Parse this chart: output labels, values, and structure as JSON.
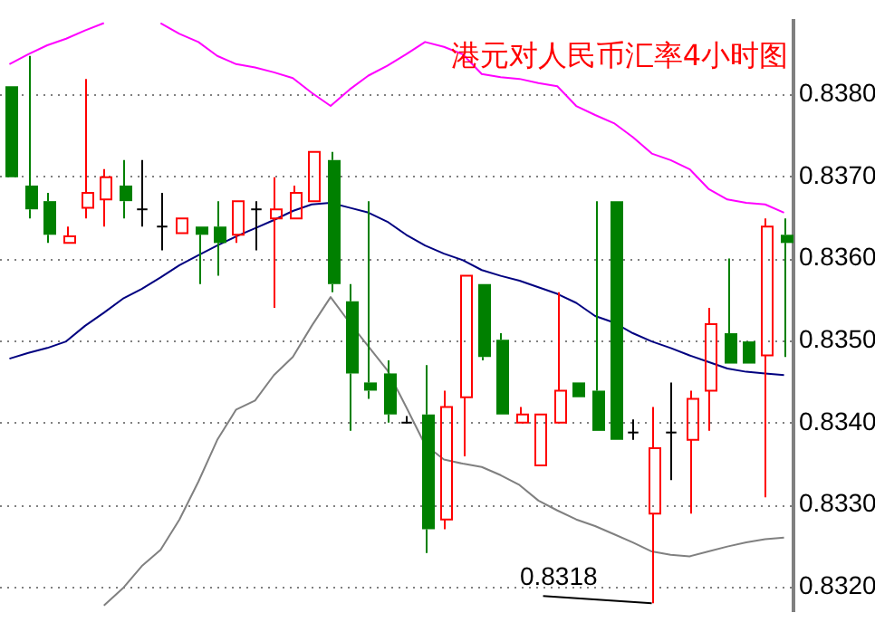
{
  "chart_data": {
    "type": "candlestick",
    "title": "港元对人民币汇率4小时图",
    "categories": [
      null,
      null,
      null,
      null,
      null,
      null,
      null,
      null,
      null,
      null,
      null,
      null,
      null,
      null,
      null,
      null,
      null,
      null,
      null,
      null,
      null,
      null,
      null,
      null,
      null,
      null,
      null,
      null,
      null,
      null,
      null,
      null,
      null,
      null,
      null,
      null,
      null,
      null,
      null,
      null,
      null,
      null
    ],
    "ohlc": [
      [
        0.8381,
        0.8381,
        0.83699,
        0.83699
      ],
      [
        0.83689,
        0.83847,
        0.83649,
        0.8366
      ],
      [
        0.8367,
        0.8368,
        0.83619,
        0.83629
      ],
      [
        0.83619,
        0.83639,
        0.83619,
        0.83627
      ],
      [
        0.83662,
        0.83819,
        0.83649,
        0.8368
      ],
      [
        0.83672,
        0.83709,
        0.83639,
        0.83699
      ],
      [
        0.83689,
        0.8372,
        0.83649,
        0.8367
      ],
      [
        0.8366,
        0.8372,
        0.83639,
        0.8366
      ],
      [
        0.83639,
        0.8368,
        0.8361,
        0.83639
      ],
      [
        0.83631,
        0.83649,
        0.83631,
        0.83649
      ],
      [
        0.83639,
        0.83639,
        0.83569,
        0.83629
      ],
      [
        0.83639,
        0.8367,
        0.83579,
        0.83619
      ],
      [
        0.83629,
        0.8367,
        0.83619,
        0.8367
      ],
      [
        0.8366,
        0.8367,
        0.8361,
        0.8366
      ],
      [
        0.83649,
        0.83699,
        0.8354,
        0.8366
      ],
      [
        0.83649,
        0.83689,
        0.83649,
        0.8368
      ],
      [
        0.8367,
        0.8373,
        0.8367,
        0.8373
      ],
      [
        0.8372,
        0.8373,
        0.83559,
        0.83569
      ],
      [
        0.83548,
        0.83569,
        0.8339,
        0.8346
      ],
      [
        0.83449,
        0.8367,
        0.83429,
        0.83439
      ],
      [
        0.8346,
        0.83476,
        0.834,
        0.8341
      ],
      [
        0.834,
        0.83408,
        0.834,
        0.834
      ],
      [
        0.8341,
        0.8347,
        0.83241,
        0.8327
      ],
      [
        0.83282,
        0.83439,
        0.8327,
        0.83419
      ],
      [
        0.83431,
        0.83579,
        0.83359,
        0.83579
      ],
      [
        0.83569,
        0.83569,
        0.83476,
        0.8348
      ],
      [
        0.83501,
        0.83509,
        0.8341,
        0.8341
      ],
      [
        0.834,
        0.83419,
        0.834,
        0.8341
      ],
      [
        0.83348,
        0.8341,
        0.83348,
        0.8341
      ],
      [
        0.834,
        0.83559,
        0.834,
        0.83439
      ],
      [
        0.83449,
        0.83449,
        0.83431,
        0.83431
      ],
      [
        0.83439,
        0.8367,
        0.8339,
        0.8339
      ],
      [
        0.8367,
        0.8367,
        0.83379,
        0.83379
      ],
      [
        0.83388,
        0.83404,
        0.83379,
        0.83388
      ],
      [
        0.83289,
        0.83419,
        0.8318,
        0.83369
      ],
      [
        0.83388,
        0.83449,
        0.8333,
        0.83388
      ],
      [
        0.83379,
        0.83439,
        0.83289,
        0.83429
      ],
      [
        0.83439,
        0.8354,
        0.8339,
        0.8352
      ],
      [
        0.83509,
        0.836,
        0.83472,
        0.83472
      ],
      [
        0.83499,
        0.83499,
        0.83472,
        0.83472
      ],
      [
        0.83482,
        0.83649,
        0.83309,
        0.83639
      ],
      [
        0.83629,
        0.83649,
        0.8348,
        0.83619
      ]
    ],
    "series": [
      {
        "type": "line",
        "color": "#ff00ff",
        "values": [
          0.83837,
          0.83849,
          0.8386,
          0.83868,
          0.83878,
          0.83887,
          null,
          null,
          0.83887,
          0.83874,
          0.83864,
          0.83847,
          0.83837,
          0.83833,
          0.83827,
          0.8382,
          0.83802,
          0.83786,
          0.83806,
          0.83823,
          0.83835,
          0.83849,
          0.83864,
          0.83858,
          0.83849,
          0.83825,
          0.83821,
          0.83819,
          0.83814,
          0.8381,
          0.83786,
          0.83775,
          0.83765,
          0.83748,
          0.83728,
          0.8372,
          0.83709,
          0.83685,
          0.83672,
          0.83668,
          0.83666,
          0.83656
        ]
      },
      {
        "type": "line",
        "color": "#000080",
        "values": [
          0.83478,
          0.83485,
          0.83491,
          0.83499,
          0.83518,
          0.83534,
          0.83551,
          0.83563,
          0.83577,
          0.83592,
          0.83604,
          0.83616,
          0.83627,
          0.83637,
          0.83647,
          0.83658,
          0.83666,
          0.83668,
          0.83662,
          0.83656,
          0.83645,
          0.83629,
          0.83616,
          0.83606,
          0.83598,
          0.83586,
          0.83579,
          0.83573,
          0.83565,
          0.83557,
          0.83546,
          0.8353,
          0.83522,
          0.83509,
          0.83499,
          0.83491,
          0.83482,
          0.83474,
          0.83466,
          0.83462,
          0.8346,
          0.83458
        ]
      },
      {
        "type": "line",
        "color": "#808080",
        "values": [
          null,
          null,
          null,
          null,
          null,
          0.83177,
          0.83198,
          0.83225,
          0.83245,
          0.83282,
          0.83328,
          0.83379,
          0.83416,
          0.83427,
          0.83458,
          0.8348,
          0.83518,
          0.83553,
          0.83522,
          0.83493,
          0.83464,
          0.83419,
          0.83373,
          0.83355,
          0.8335,
          0.83346,
          0.83336,
          0.83324,
          0.83305,
          0.83293,
          0.83282,
          0.83274,
          0.83264,
          0.83254,
          0.83243,
          0.83239,
          0.83237,
          0.83243,
          0.83249,
          0.83254,
          0.83258,
          0.8326
        ]
      }
    ],
    "ylim": [
      0.8317,
      0.8389
    ],
    "yticks": [
      {
        "value": 0.832,
        "label": "0.8320"
      },
      {
        "value": 0.833,
        "label": "0.8330"
      },
      {
        "value": 0.834,
        "label": "0.8340"
      },
      {
        "value": 0.835,
        "label": "0.8350"
      },
      {
        "value": 0.836,
        "label": "0.8360"
      },
      {
        "value": 0.837,
        "label": "0.8370"
      },
      {
        "value": 0.838,
        "label": "0.8380"
      }
    ],
    "grid": "y",
    "tick_labels": "y",
    "annotations": [
      "0.8318"
    ]
  }
}
